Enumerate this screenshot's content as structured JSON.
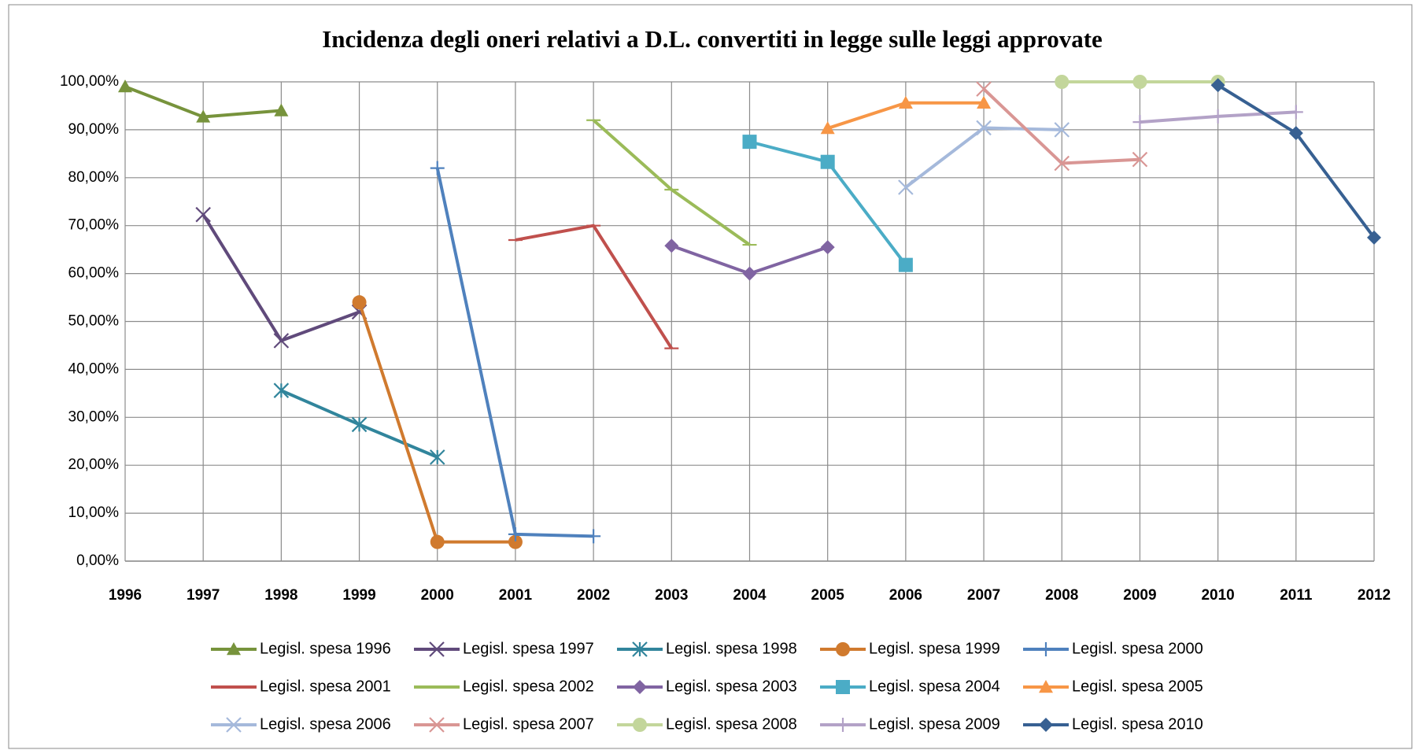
{
  "chart_data": {
    "type": "line",
    "title": "Incidenza degli oneri relativi a D.L. convertiti in legge sulle leggi approvate",
    "categories": [
      "1996",
      "1997",
      "1998",
      "1999",
      "2000",
      "2001",
      "2002",
      "2003",
      "2004",
      "2005",
      "2006",
      "2007",
      "2008",
      "2009",
      "2010",
      "2011",
      "2012"
    ],
    "ylim": [
      0,
      100
    ],
    "yticks": [
      {
        "value": 0,
        "label": "0,00%"
      },
      {
        "value": 10,
        "label": "10,00%"
      },
      {
        "value": 20,
        "label": "20,00%"
      },
      {
        "value": 30,
        "label": "30,00%"
      },
      {
        "value": 40,
        "label": "40,00%"
      },
      {
        "value": 50,
        "label": "50,00%"
      },
      {
        "value": 60,
        "label": "60,00%"
      },
      {
        "value": 70,
        "label": "70,00%"
      },
      {
        "value": 80,
        "label": "80,00%"
      },
      {
        "value": 90,
        "label": "90,00%"
      },
      {
        "value": 100,
        "label": "100,00%"
      }
    ],
    "grid": true,
    "legend": "bottom",
    "series": [
      {
        "name": "Legisl. spesa 1996",
        "color": "#77933c",
        "marker": "triangle",
        "values": [
          99,
          92.7,
          94,
          null,
          null,
          null,
          null,
          null,
          null,
          null,
          null,
          null,
          null,
          null,
          null,
          null,
          null
        ]
      },
      {
        "name": "Legisl. spesa 1997",
        "color": "#604a7b",
        "marker": "x",
        "values": [
          null,
          72.3,
          46,
          52,
          null,
          null,
          null,
          null,
          null,
          null,
          null,
          null,
          null,
          null,
          null,
          null,
          null
        ]
      },
      {
        "name": "Legisl. spesa 1998",
        "color": "#31859c",
        "marker": "star",
        "values": [
          null,
          null,
          35.6,
          28.5,
          21.7,
          null,
          null,
          null,
          null,
          null,
          null,
          null,
          null,
          null,
          null,
          null,
          null
        ]
      },
      {
        "name": "Legisl. spesa 1999",
        "color": "#d07a2e",
        "marker": "circle",
        "values": [
          null,
          null,
          null,
          54,
          4,
          4,
          null,
          null,
          null,
          null,
          null,
          null,
          null,
          null,
          null,
          null,
          null
        ]
      },
      {
        "name": "Legisl. spesa 2000",
        "color": "#4f81bd",
        "marker": "plus",
        "values": [
          null,
          null,
          null,
          null,
          82,
          5.6,
          5.2,
          null,
          null,
          null,
          null,
          null,
          null,
          null,
          null,
          null,
          null
        ]
      },
      {
        "name": "Legisl. spesa 2001",
        "color": "#c0504d",
        "marker": "dash",
        "values": [
          null,
          null,
          null,
          null,
          null,
          67,
          70,
          44.4,
          null,
          null,
          null,
          null,
          null,
          null,
          null,
          null,
          null
        ]
      },
      {
        "name": "Legisl. spesa 2002",
        "color": "#9bbb59",
        "marker": "dash",
        "values": [
          null,
          null,
          null,
          null,
          null,
          null,
          92,
          77.5,
          66,
          null,
          null,
          null,
          null,
          null,
          null,
          null,
          null
        ]
      },
      {
        "name": "Legisl. spesa 2003",
        "color": "#8064a2",
        "marker": "diamond",
        "values": [
          null,
          null,
          null,
          null,
          null,
          null,
          null,
          65.8,
          60,
          65.5,
          null,
          null,
          null,
          null,
          null,
          null,
          null
        ]
      },
      {
        "name": "Legisl. spesa 2004",
        "color": "#4bacc6",
        "marker": "square",
        "values": [
          null,
          null,
          null,
          null,
          null,
          null,
          null,
          null,
          87.5,
          83.3,
          61.8,
          null,
          null,
          null,
          null,
          null,
          null
        ]
      },
      {
        "name": "Legisl. spesa 2005",
        "color": "#f79646",
        "marker": "triangle",
        "values": [
          null,
          null,
          null,
          null,
          null,
          null,
          null,
          null,
          null,
          90.3,
          95.6,
          95.6,
          null,
          null,
          null,
          null,
          null
        ]
      },
      {
        "name": "Legisl. spesa 2006",
        "color": "#a5b9db",
        "marker": "x",
        "values": [
          null,
          null,
          null,
          null,
          null,
          null,
          null,
          null,
          null,
          null,
          78,
          90.4,
          90,
          null,
          null,
          null,
          null
        ]
      },
      {
        "name": "Legisl. spesa 2007",
        "color": "#d99694",
        "marker": "x",
        "values": [
          null,
          null,
          null,
          null,
          null,
          null,
          null,
          null,
          null,
          null,
          null,
          98.5,
          83,
          83.8,
          null,
          null,
          null
        ]
      },
      {
        "name": "Legisl. spesa 2008",
        "color": "#c3d69b",
        "marker": "circle",
        "values": [
          null,
          null,
          null,
          null,
          null,
          null,
          null,
          null,
          null,
          null,
          null,
          null,
          100,
          100,
          100,
          null,
          null
        ]
      },
      {
        "name": "Legisl. spesa 2009",
        "color": "#b3a2c7",
        "marker": "plus",
        "values": [
          null,
          null,
          null,
          null,
          null,
          null,
          null,
          null,
          null,
          null,
          null,
          null,
          null,
          91.6,
          92.8,
          93.7,
          null
        ]
      },
      {
        "name": "Legisl. spesa 2010",
        "color": "#376092",
        "marker": "diamond",
        "values": [
          null,
          null,
          null,
          null,
          null,
          null,
          null,
          null,
          null,
          null,
          null,
          null,
          null,
          null,
          99.3,
          89.3,
          67.5
        ]
      }
    ]
  }
}
